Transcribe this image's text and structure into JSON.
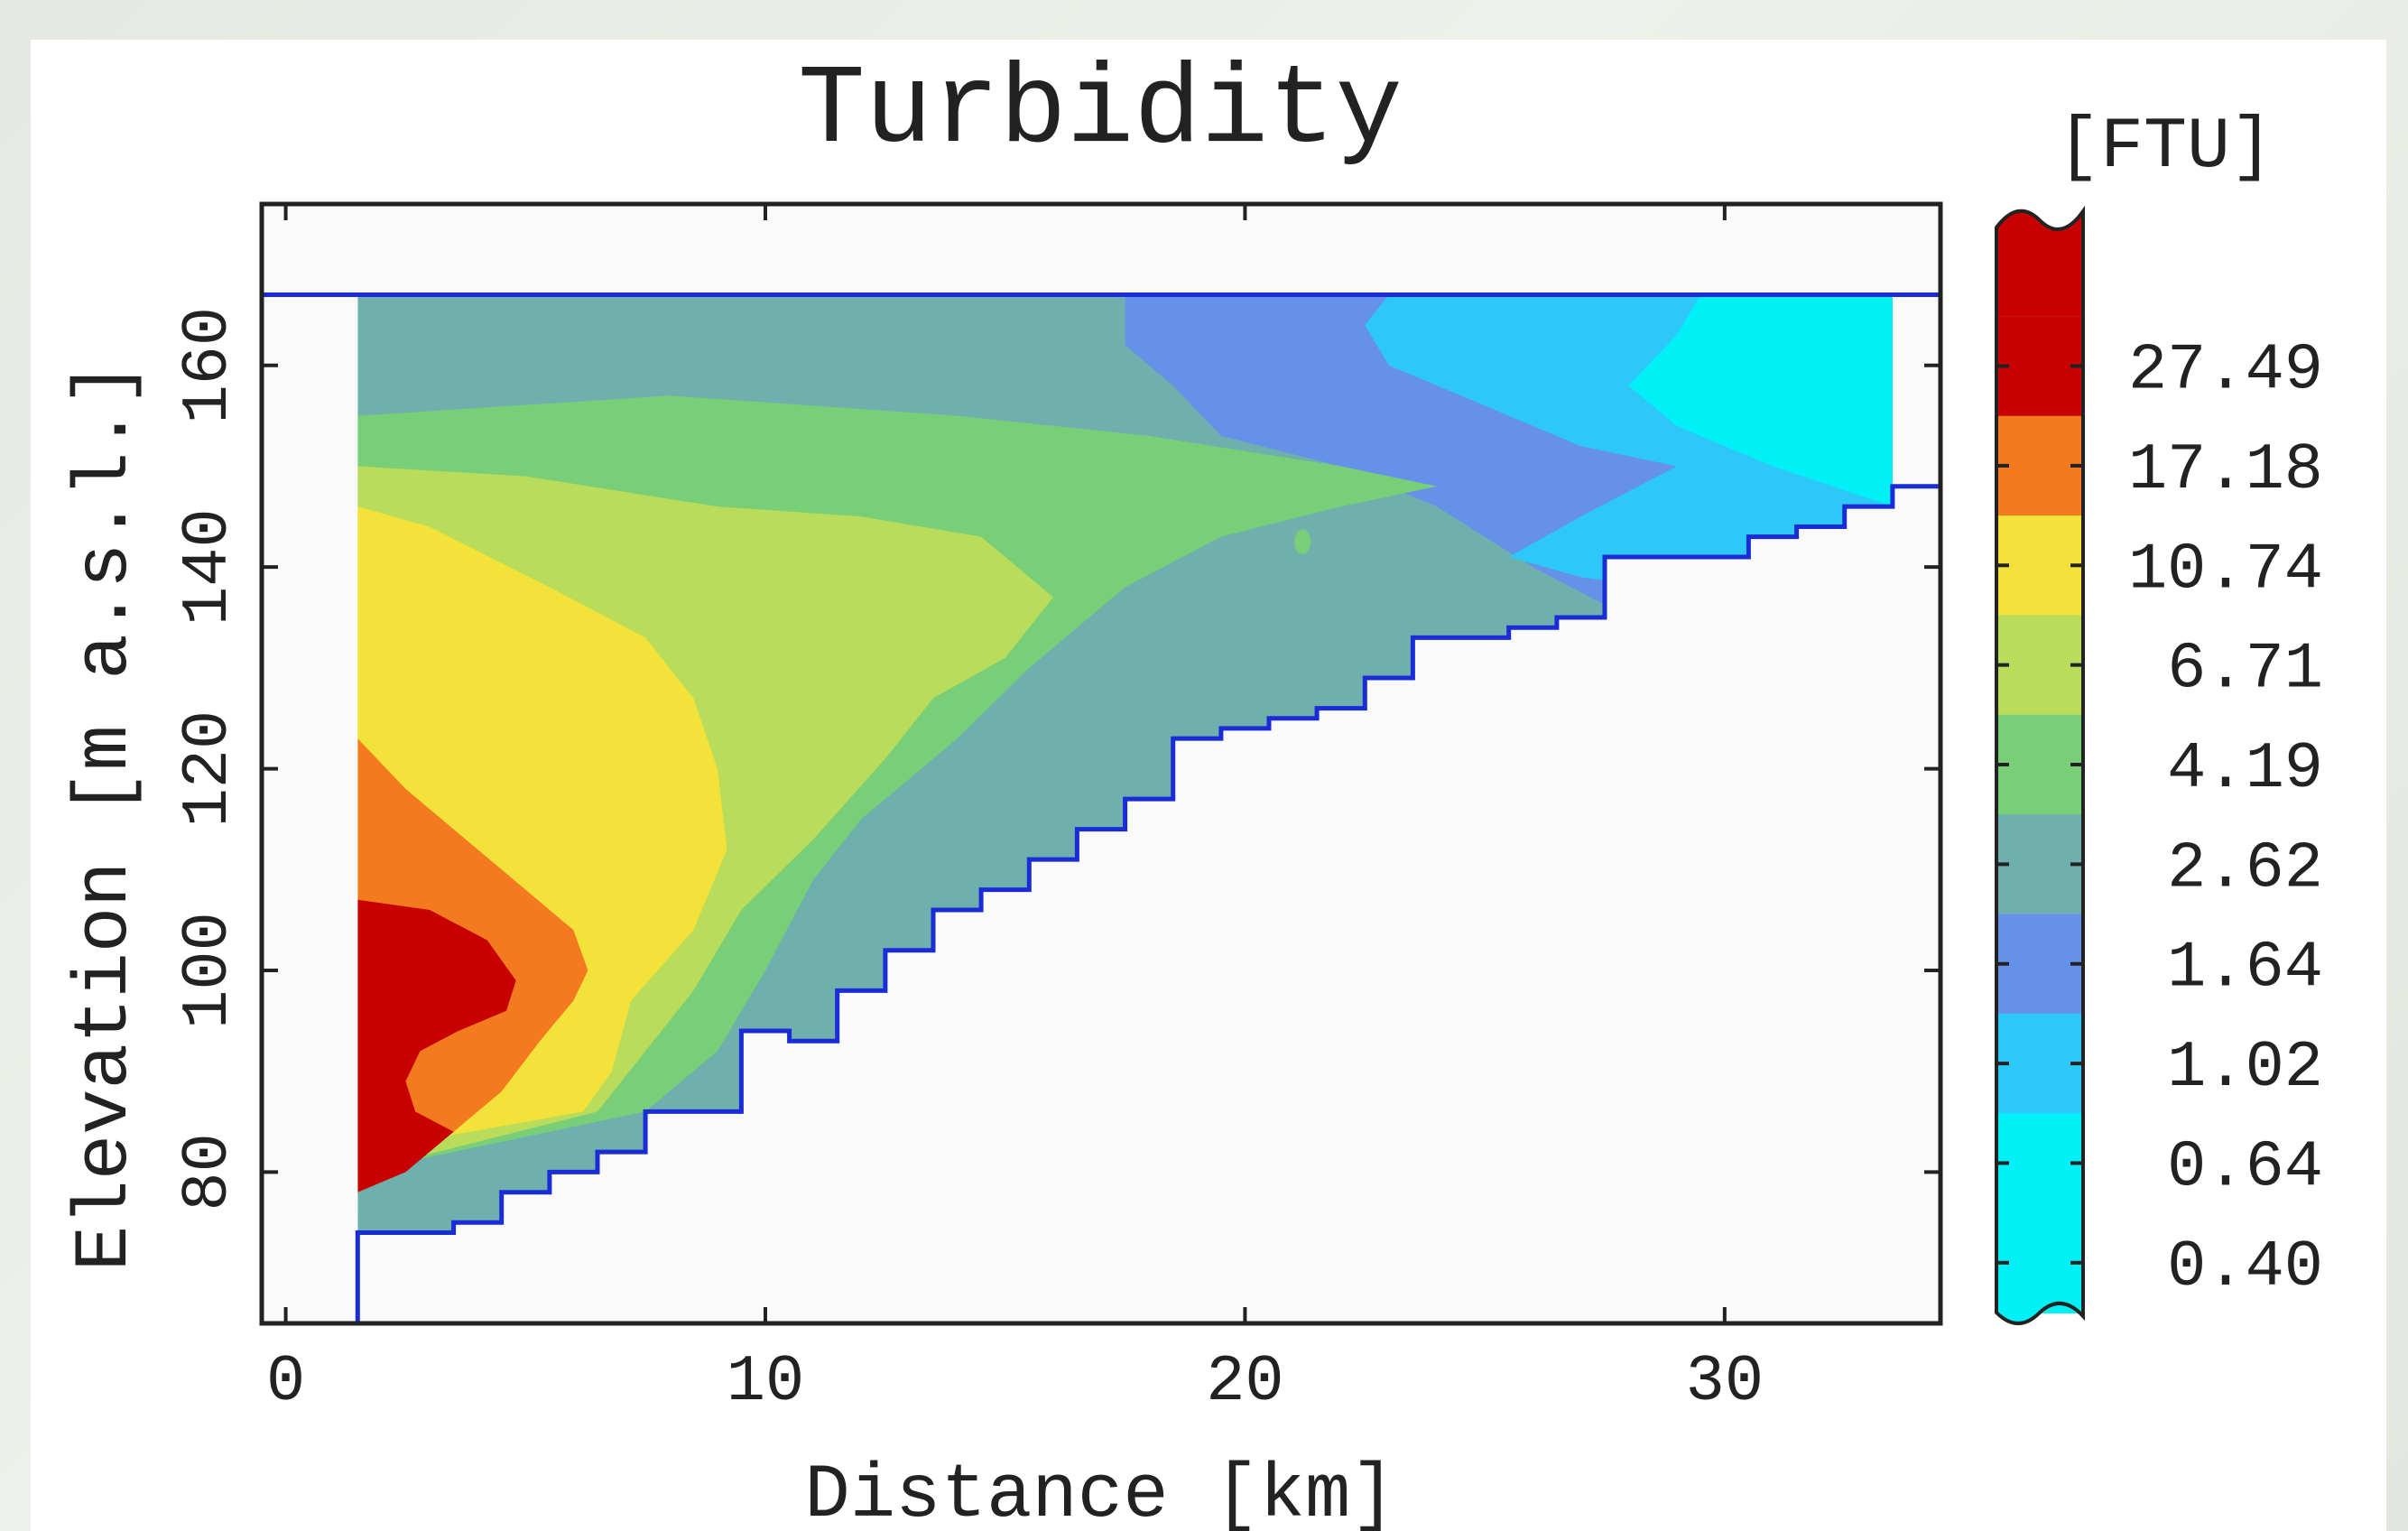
{
  "chart_data": {
    "type": "contour",
    "title": "Turbidity",
    "xlabel": "Distance [km]",
    "ylabel": "Elevation [m a.s.l.]",
    "xlim": [
      -0.5,
      34.5
    ],
    "ylim": [
      65,
      176
    ],
    "x_ticks": [
      0,
      10,
      20,
      30
    ],
    "y_ticks": [
      80,
      100,
      120,
      140,
      160
    ],
    "water_surface_elevation": 167,
    "colorbar": {
      "unit": "[FTU]",
      "levels": [
        "27.49",
        "17.18",
        "10.74",
        "6.71",
        "4.19",
        "2.62",
        "1.64",
        "1.02",
        "0.64",
        "0.40"
      ],
      "colors": [
        "#c80000",
        "#f47a20",
        "#f2e23a",
        "#b9dc5a",
        "#79cf78",
        "#6fafae",
        "#6592e8",
        "#2ec8f8",
        "#00f0f8",
        "#00f0f8"
      ]
    },
    "bottom_profile": [
      [
        1.5,
        65
      ],
      [
        1.5,
        74
      ],
      [
        3.5,
        74
      ],
      [
        3.5,
        75
      ],
      [
        4.5,
        75
      ],
      [
        4.5,
        78
      ],
      [
        5.5,
        78
      ],
      [
        5.5,
        80
      ],
      [
        6.5,
        80
      ],
      [
        6.5,
        82
      ],
      [
        7.5,
        82
      ],
      [
        7.5,
        86
      ],
      [
        9.5,
        86
      ],
      [
        9.5,
        94
      ],
      [
        10.5,
        94
      ],
      [
        10.5,
        93
      ],
      [
        11.5,
        93
      ],
      [
        11.5,
        98
      ],
      [
        12.5,
        98
      ],
      [
        12.5,
        102
      ],
      [
        13.5,
        102
      ],
      [
        13.5,
        106
      ],
      [
        14.5,
        106
      ],
      [
        14.5,
        108
      ],
      [
        15.5,
        108
      ],
      [
        15.5,
        111
      ],
      [
        16.5,
        111
      ],
      [
        16.5,
        114
      ],
      [
        17.5,
        114
      ],
      [
        17.5,
        117
      ],
      [
        18.5,
        117
      ],
      [
        18.5,
        123
      ],
      [
        19.5,
        123
      ],
      [
        19.5,
        124
      ],
      [
        20.5,
        124
      ],
      [
        20.5,
        125
      ],
      [
        21.5,
        125
      ],
      [
        21.5,
        126
      ],
      [
        22.5,
        126
      ],
      [
        22.5,
        129
      ],
      [
        23.5,
        129
      ],
      [
        23.5,
        133
      ],
      [
        25.5,
        133
      ],
      [
        25.5,
        134
      ],
      [
        26.5,
        134
      ],
      [
        26.5,
        135
      ],
      [
        27.5,
        135
      ],
      [
        27.5,
        141
      ],
      [
        30.5,
        141
      ],
      [
        30.5,
        143
      ],
      [
        31.5,
        143
      ],
      [
        31.5,
        144
      ],
      [
        32.5,
        144
      ],
      [
        32.5,
        146
      ],
      [
        33.5,
        146
      ],
      [
        33.5,
        148
      ],
      [
        34.5,
        148
      ]
    ]
  }
}
